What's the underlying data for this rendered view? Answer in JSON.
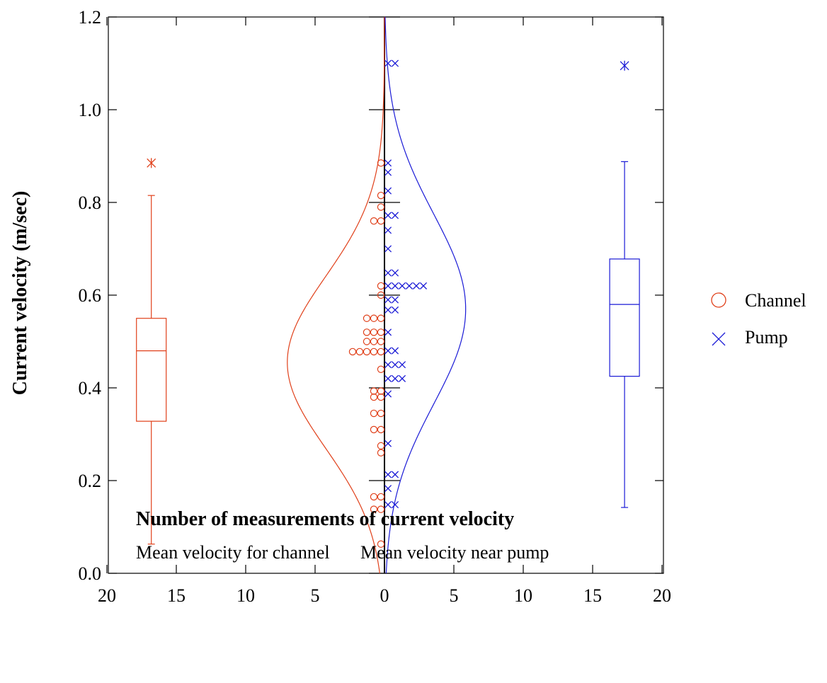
{
  "chart_data": {
    "type": "scatter",
    "subtype": "back-to-back dot histogram with fitted normal curves and box plots",
    "ylabel": "Current velocity (m/sec)",
    "xlabel": "Number of measurements of current velocity",
    "xlabel_left": "Mean velocity for channel",
    "xlabel_right": "Mean velocity near pump",
    "ylim": [
      0,
      1.2
    ],
    "yticks": [
      "0.0",
      "0.2",
      "0.4",
      "0.6",
      "0.8",
      "1.0",
      "1.2"
    ],
    "xlim": [
      -20,
      20
    ],
    "xticks": [
      -20,
      -15,
      -10,
      -5,
      0,
      5,
      10,
      15,
      20
    ],
    "xtick_labels": [
      "20",
      "15",
      "10",
      "5",
      "0",
      "5",
      "10",
      "15",
      "20"
    ],
    "grid": false,
    "legend_position": "right",
    "colors": {
      "channel": "#e0401a",
      "pump": "#1a1ad6",
      "axis": "#000000"
    },
    "series": [
      {
        "name": "Channel",
        "marker": "circle",
        "side": "left",
        "bins": [
          {
            "y": 0.885,
            "count": 1
          },
          {
            "y": 0.815,
            "count": 1
          },
          {
            "y": 0.79,
            "count": 1
          },
          {
            "y": 0.76,
            "count": 2
          },
          {
            "y": 0.62,
            "count": 1
          },
          {
            "y": 0.6,
            "count": 1
          },
          {
            "y": 0.55,
            "count": 3
          },
          {
            "y": 0.52,
            "count": 3
          },
          {
            "y": 0.5,
            "count": 3
          },
          {
            "y": 0.478,
            "count": 5
          },
          {
            "y": 0.44,
            "count": 1
          },
          {
            "y": 0.393,
            "count": 2
          },
          {
            "y": 0.38,
            "count": 2
          },
          {
            "y": 0.345,
            "count": 2
          },
          {
            "y": 0.31,
            "count": 2
          },
          {
            "y": 0.275,
            "count": 1
          },
          {
            "y": 0.26,
            "count": 1
          },
          {
            "y": 0.165,
            "count": 2
          },
          {
            "y": 0.138,
            "count": 2
          },
          {
            "y": 0.063,
            "count": 1
          }
        ],
        "normal_curve": {
          "mean": 0.455,
          "peak_count": 7.0,
          "sd": 0.185
        },
        "boxplot": {
          "min": 0.063,
          "q1": 0.328,
          "median": 0.48,
          "q3": 0.55,
          "max": 0.815,
          "outliers": [
            0.885
          ],
          "x": -16.8
        }
      },
      {
        "name": "Pump",
        "marker": "cross",
        "side": "right",
        "bins": [
          {
            "y": 1.1,
            "count": 2
          },
          {
            "y": 0.885,
            "count": 1
          },
          {
            "y": 0.865,
            "count": 1
          },
          {
            "y": 0.825,
            "count": 1
          },
          {
            "y": 0.772,
            "count": 2
          },
          {
            "y": 0.74,
            "count": 1
          },
          {
            "y": 0.7,
            "count": 1
          },
          {
            "y": 0.648,
            "count": 2
          },
          {
            "y": 0.62,
            "count": 6
          },
          {
            "y": 0.59,
            "count": 2
          },
          {
            "y": 0.568,
            "count": 2
          },
          {
            "y": 0.52,
            "count": 1
          },
          {
            "y": 0.48,
            "count": 2
          },
          {
            "y": 0.45,
            "count": 3
          },
          {
            "y": 0.42,
            "count": 3
          },
          {
            "y": 0.387,
            "count": 1
          },
          {
            "y": 0.28,
            "count": 1
          },
          {
            "y": 0.213,
            "count": 2
          },
          {
            "y": 0.183,
            "count": 1
          },
          {
            "y": 0.148,
            "count": 2
          }
        ],
        "normal_curve": {
          "mean": 0.57,
          "peak_count": 5.85,
          "sd": 0.205
        },
        "boxplot": {
          "min": 0.142,
          "q1": 0.425,
          "median": 0.58,
          "q3": 0.678,
          "max": 0.888,
          "outliers": [
            1.095
          ],
          "x": 17.3
        }
      }
    ]
  }
}
